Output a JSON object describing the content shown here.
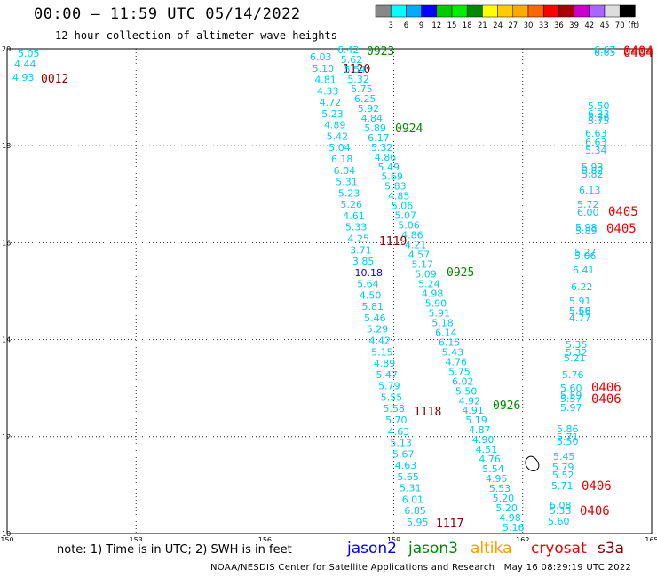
{
  "header": {
    "title": "00:00 – 11:59 UTC 05/14/2022",
    "subtitle": "12 hour collection of altimeter wave heights"
  },
  "colorbar": {
    "labels": [
      "3",
      "6",
      "9",
      "12",
      "15",
      "18",
      "21",
      "24",
      "27",
      "30",
      "33",
      "36",
      "39",
      "42",
      "45",
      "70"
    ],
    "unit": "(ft)",
    "colors": [
      "#888888",
      "#00ffff",
      "#00aaff",
      "#0000ff",
      "#00cc00",
      "#00ee00",
      "#008800",
      "#ffff00",
      "#ffcc00",
      "#ffaa00",
      "#ff6600",
      "#ff0000",
      "#aa0000",
      "#cc00cc",
      "#aa66ff",
      "#dddddd",
      "#000000"
    ]
  },
  "axes": {
    "x_ticks": [
      "150",
      "153",
      "156",
      "159",
      "162",
      "165"
    ],
    "y_ticks": [
      "20",
      "18",
      "16",
      "14",
      "12",
      "10"
    ],
    "lon_range": [
      150,
      165
    ],
    "lat_range": [
      10,
      20
    ]
  },
  "colors": {
    "jason2": "#0000ff",
    "jason3": "#008800",
    "altika": "#ff9900",
    "cryosat": "#ee0000",
    "s3a": "#880000",
    "cyan_value": "#00ccee",
    "blue_value": "#0000ff"
  },
  "tracks": [
    {
      "id": "0012",
      "color": "#880000",
      "values": [
        "5.05",
        "4.44",
        "4.93"
      ]
    },
    {
      "id": "1120",
      "color": "#880000",
      "values": [
        "6.03",
        "5.10",
        "4.81",
        "4.33",
        "4.72",
        "5.23",
        "4.89",
        "5.42",
        "5.04",
        "6.18",
        "6.04",
        "5.31",
        "5.23",
        "5.26",
        "4.61",
        "5.33",
        "4.25",
        "3.71",
        "3.85",
        "10.18",
        "5.64",
        "4.50",
        "5.81",
        "5.46",
        "5.29",
        "4.42",
        "5.15",
        "4.89",
        "5.47",
        "5.79",
        "5.55",
        "5.58",
        "5.70",
        "4.63",
        "5.13",
        "5.67",
        "4.63",
        "5.65",
        "5.31",
        "6.01",
        "6.85",
        "5.95"
      ]
    },
    {
      "id": "0923",
      "color": "#008800",
      "values": [
        "6.42",
        "5.62",
        "5.54",
        "5.32",
        "5.75",
        "6.25",
        "5.92",
        "4.84",
        "5.89",
        "6.17",
        "5.32",
        "4.86",
        "5.49",
        "5.69",
        "5.83",
        "4.85",
        "5.06",
        "5.07",
        "5.06",
        "4.86",
        "4.21",
        "4.57",
        "5.17",
        "5.09",
        "5.24",
        "4.98",
        "5.90",
        "5.91",
        "5.18",
        "6.14",
        "6.15",
        "5.43",
        "4.76",
        "5.75",
        "6.02",
        "5.50",
        "4.92",
        "4.91",
        "5.19",
        "4.87",
        "4.90",
        "4.51",
        "4.76",
        "5.54",
        "4.95",
        "5.53",
        "5.20",
        "5.20",
        "4.98",
        "5.16"
      ]
    },
    {
      "id": "0924",
      "color": "#008800",
      "values": []
    },
    {
      "id": "0925",
      "color": "#008800",
      "values": []
    },
    {
      "id": "0926",
      "color": "#008800",
      "values": []
    },
    {
      "id": "1119",
      "color": "#880000",
      "values": []
    },
    {
      "id": "1118",
      "color": "#880000",
      "values": []
    },
    {
      "id": "1117",
      "color": "#880000",
      "values": []
    },
    {
      "id": "0404",
      "color": "#ee0000",
      "values": [
        "6.67",
        "6.65",
        "5.50",
        "6.33",
        "5.76",
        "5.75",
        "6.63",
        "6.63",
        "5.34",
        "5.93",
        "5.82",
        "5.82",
        "6.13",
        "5.72",
        "6.00",
        "5.98",
        "5.89",
        "5.27",
        "5.06",
        "6.41",
        "6.22",
        "5.91",
        "5.68",
        "5.56",
        "4.77",
        "5.35",
        "5.32",
        "5.21",
        "5.76",
        "5.60",
        "5.59",
        "5.57",
        "5.97",
        "5.86",
        "5.71",
        "5.50",
        "5.45",
        "5.79",
        "5.52",
        "5.71",
        "6.08",
        "5.33",
        "5.60"
      ]
    }
  ],
  "labels": [
    {
      "text": "0404",
      "color": "#ee0000"
    },
    {
      "text": "0404",
      "color": "#ee0000"
    },
    {
      "text": "0405",
      "color": "#ee0000"
    },
    {
      "text": "0405",
      "color": "#ee0000"
    },
    {
      "text": "0406",
      "color": "#ee0000"
    },
    {
      "text": "0406",
      "color": "#ee0000"
    },
    {
      "text": "0406",
      "color": "#ee0000"
    },
    {
      "text": "0406",
      "color": "#ee0000"
    }
  ],
  "footer": {
    "note": "note: 1) Time is in UTC; 2) SWH is in feet",
    "jason2": "jason2",
    "jason3": "jason3",
    "altika": "altika",
    "cryosat": "cryosat",
    "s3a": "s3a",
    "credit": "NOAA/NESDIS Center for Satellite Applications and Research   May 16 08:29:19 UTC 2022"
  }
}
